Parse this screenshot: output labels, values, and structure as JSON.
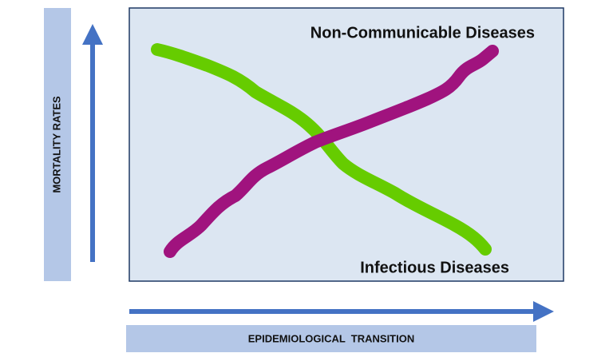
{
  "diagram": {
    "y_axis_label": "MORTALITY RATES",
    "x_axis_label": "EPIDEMIOLOGICAL  TRANSITION",
    "curves": [
      {
        "label": "Non-Communicable Diseases"
      },
      {
        "label": "Infectious Diseases"
      }
    ]
  }
}
